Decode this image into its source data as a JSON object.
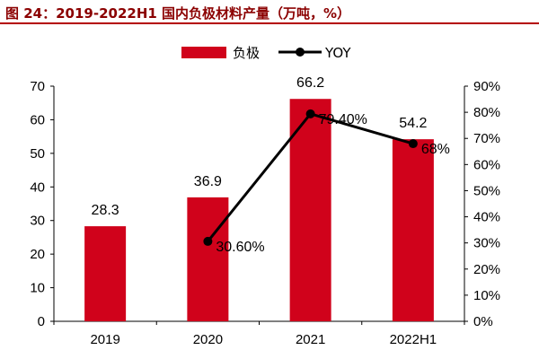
{
  "title": "图 24：2019-2022H1 国内负极材料产量（万吨，%）",
  "chart_data": {
    "type": "bar",
    "categories": [
      "2019",
      "2020",
      "2021",
      "2022H1"
    ],
    "series": [
      {
        "name": "负极",
        "type": "bar",
        "axis": "left",
        "values": [
          28.3,
          36.9,
          66.2,
          54.2
        ],
        "labels": [
          "28.3",
          "36.9",
          "66.2",
          "54.2"
        ],
        "color": "#d0021b"
      },
      {
        "name": "YOY",
        "type": "line",
        "axis": "right",
        "values": [
          null,
          30.6,
          79.4,
          68
        ],
        "labels": [
          "",
          "30.60%",
          "79.40%",
          "68%"
        ],
        "color": "#000000"
      }
    ],
    "y_left": {
      "min": 0,
      "max": 70,
      "ticks": [
        "0",
        "10",
        "20",
        "30",
        "40",
        "50",
        "60",
        "70"
      ]
    },
    "y_right": {
      "min": 0,
      "max": 90,
      "ticks": [
        "0%",
        "10%",
        "20%",
        "30%",
        "40%",
        "50%",
        "60%",
        "70%",
        "80%",
        "90%"
      ]
    },
    "legend": {
      "position": "top"
    },
    "grid": false
  }
}
